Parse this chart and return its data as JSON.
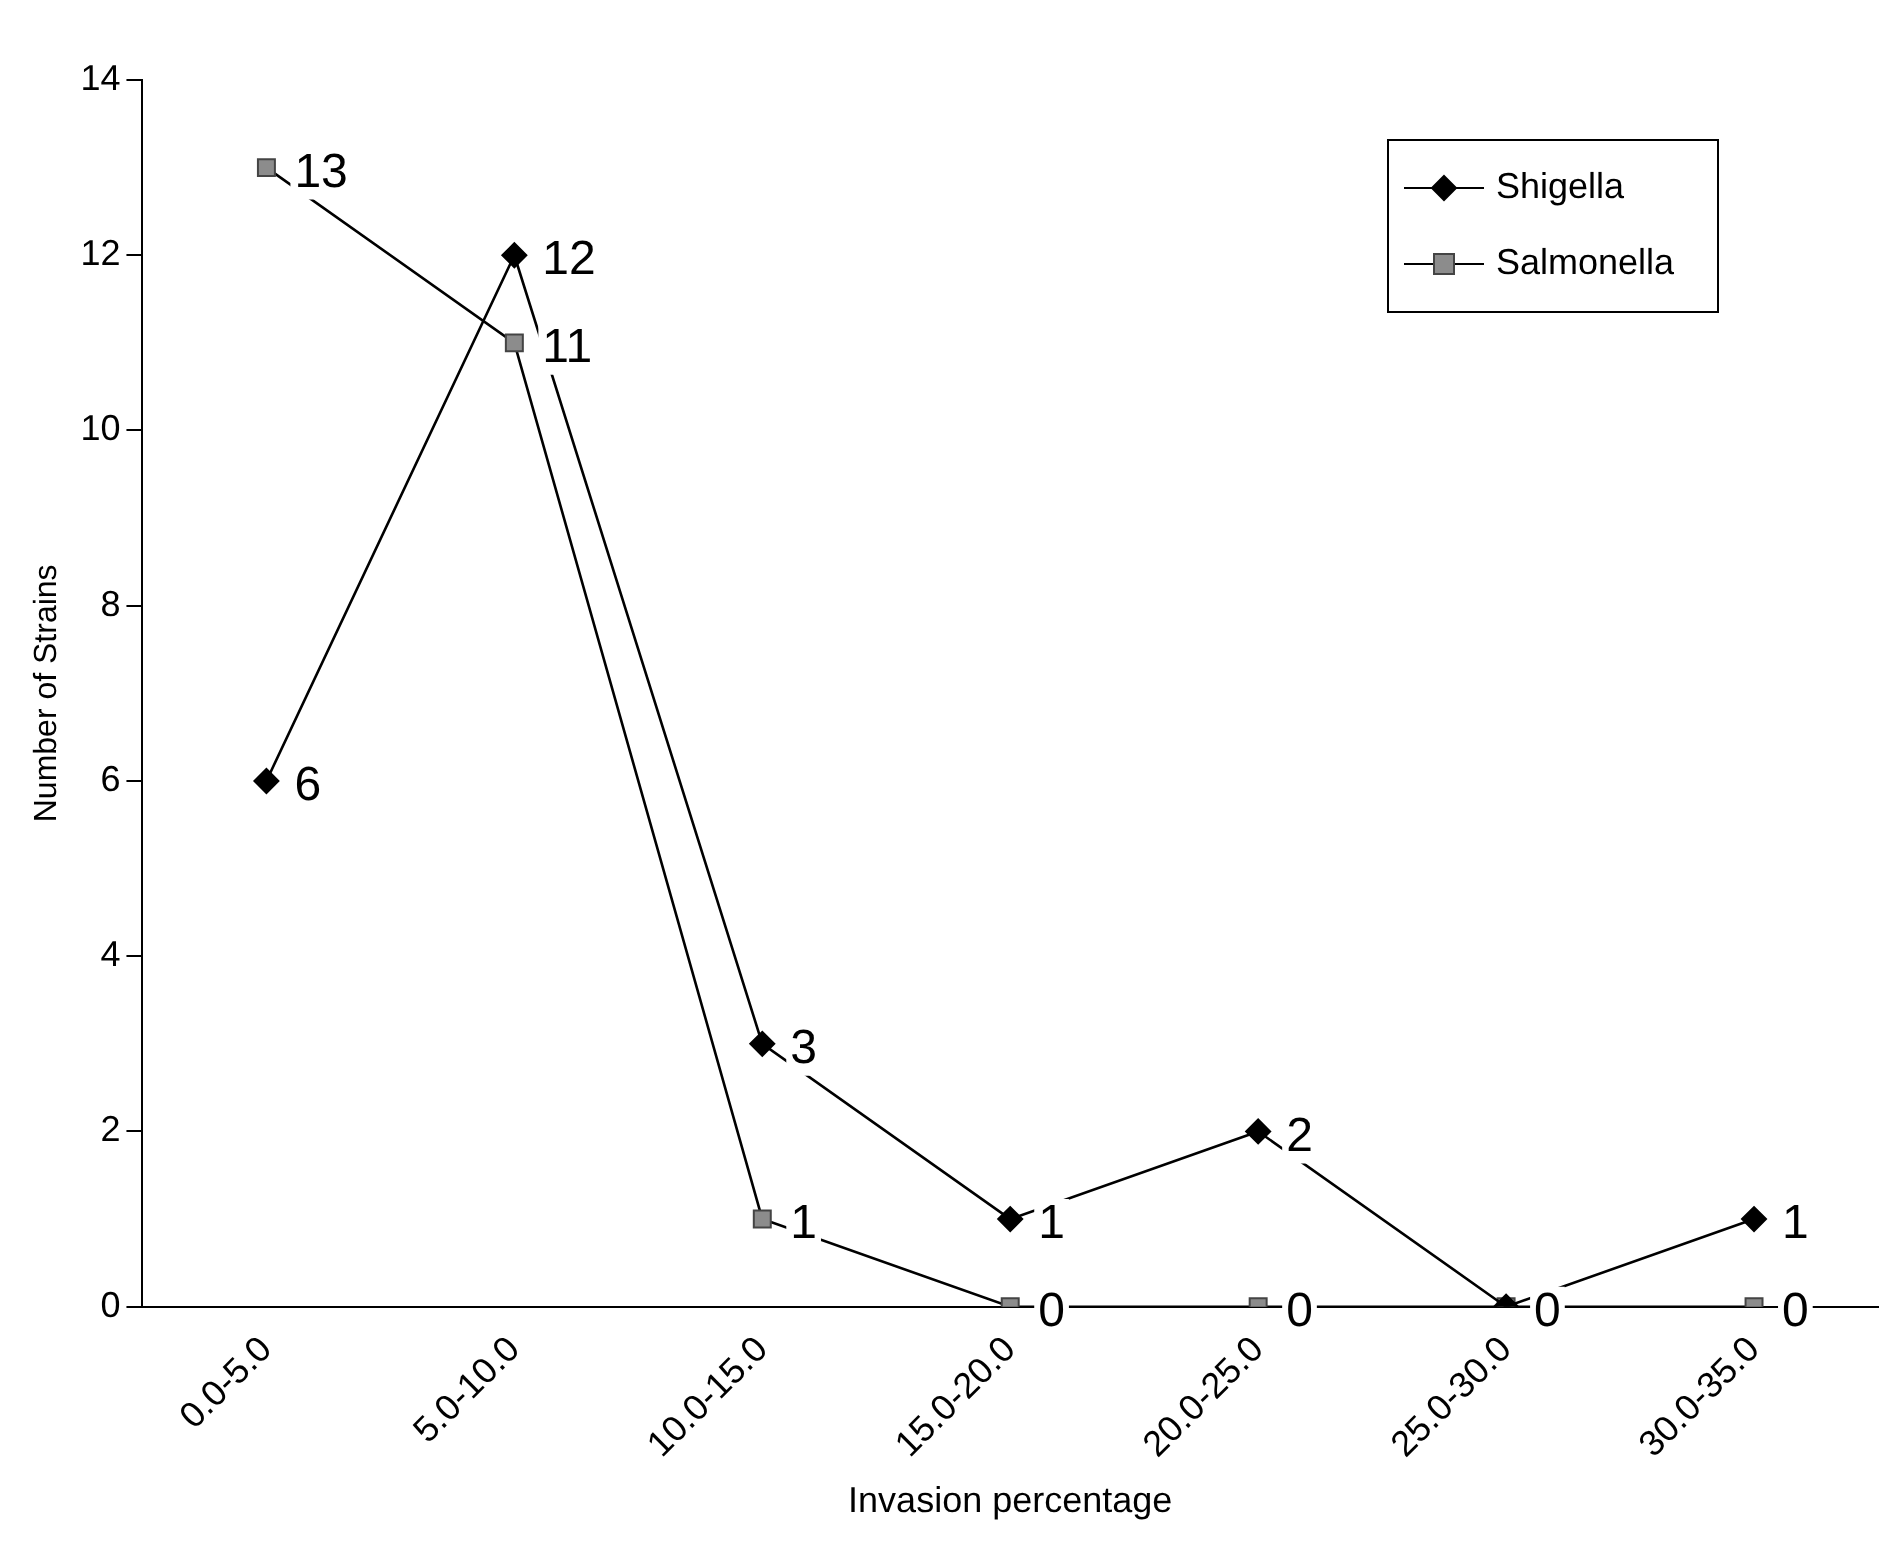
{
  "chart_data": {
    "type": "line",
    "xlabel": "Invasion percentage",
    "ylabel": "Number of Strains",
    "categories": [
      "0.0-5.0",
      "5.0-10.0",
      "10.0-15.0",
      "15.0-20.0",
      "20.0-25.0",
      "25.0-30.0",
      "30.0-35.0"
    ],
    "series": [
      {
        "name": "Shigella",
        "color": "#000000",
        "marker": "diamond",
        "values": [
          6,
          12,
          3,
          1,
          2,
          0,
          1
        ],
        "value_labels": [
          "6",
          "12",
          "3",
          "1",
          "2",
          null,
          "1"
        ]
      },
      {
        "name": "Salmonella",
        "color": "#8c8c8c",
        "marker": "square",
        "values": [
          13,
          11,
          1,
          0,
          0,
          0,
          0
        ],
        "value_labels": [
          "13",
          "11",
          "1",
          "0",
          "0",
          "0",
          "0"
        ]
      }
    ],
    "ylim": [
      0,
      14
    ],
    "yticks": [
      0,
      2,
      4,
      6,
      8,
      10,
      12,
      14
    ],
    "grid": false,
    "legend": "top right",
    "line_style": "solid"
  }
}
